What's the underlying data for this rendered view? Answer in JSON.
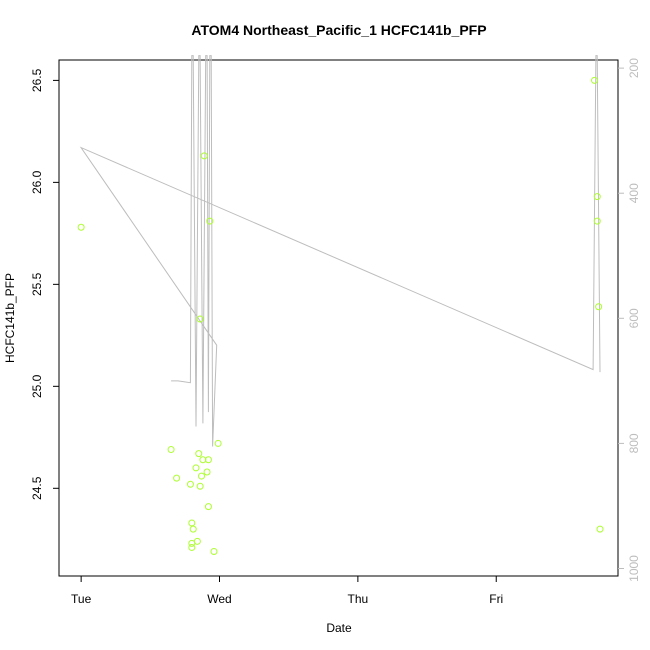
{
  "chart_data": {
    "type": "scatter",
    "title": "ATOM4 Northeast_Pacific_1 HCFC141b_PFP",
    "xlabel": "Date",
    "ylabel": "HCFC141b_PFP",
    "x_ticks": [
      {
        "day": 0,
        "label": "Tue"
      },
      {
        "day": 1,
        "label": "Wed"
      },
      {
        "day": 2,
        "label": "Thu"
      },
      {
        "day": 3,
        "label": "Fri"
      }
    ],
    "xlim": [
      -0.16,
      3.88
    ],
    "ylim": [
      24.07,
      26.6
    ],
    "y_ticks": [
      24.5,
      25.0,
      25.5,
      26.0,
      26.5
    ],
    "y_tick_labels": [
      "24.5",
      "25.0",
      "25.5",
      "26.0",
      "26.5"
    ],
    "y2_label_rotated": true,
    "y2lim": [
      1012,
      187
    ],
    "y2_ticks": [
      200,
      400,
      600,
      800,
      1000
    ],
    "y2_tick_labels": [
      "200",
      "400",
      "600",
      "800",
      "1000"
    ],
    "grid": false,
    "series": [
      {
        "kind": "points",
        "color": "#adff2f",
        "points": [
          {
            "x": 0.0,
            "y": 25.78
          },
          {
            "x": 0.65,
            "y": 24.69
          },
          {
            "x": 0.69,
            "y": 24.55
          },
          {
            "x": 0.79,
            "y": 24.52
          },
          {
            "x": 0.8,
            "y": 24.33
          },
          {
            "x": 0.81,
            "y": 24.3
          },
          {
            "x": 0.8,
            "y": 24.23
          },
          {
            "x": 0.8,
            "y": 24.21
          },
          {
            "x": 0.83,
            "y": 24.6
          },
          {
            "x": 0.84,
            "y": 24.24
          },
          {
            "x": 0.85,
            "y": 24.67
          },
          {
            "x": 0.86,
            "y": 24.51
          },
          {
            "x": 0.87,
            "y": 24.56
          },
          {
            "x": 0.88,
            "y": 24.64
          },
          {
            "x": 0.89,
            "y": 26.13
          },
          {
            "x": 0.91,
            "y": 24.58
          },
          {
            "x": 0.92,
            "y": 24.64
          },
          {
            "x": 0.92,
            "y": 24.41
          },
          {
            "x": 0.93,
            "y": 25.81
          },
          {
            "x": 0.86,
            "y": 25.33
          },
          {
            "x": 0.96,
            "y": 24.19
          },
          {
            "x": 0.99,
            "y": 24.72
          },
          {
            "x": 3.71,
            "y": 26.5
          },
          {
            "x": 3.73,
            "y": 25.93
          },
          {
            "x": 3.73,
            "y": 25.81
          },
          {
            "x": 3.74,
            "y": 25.39
          },
          {
            "x": 3.75,
            "y": 24.3
          }
        ]
      },
      {
        "kind": "line",
        "axis": "right",
        "color": "#bdbdbd",
        "points": [
          {
            "x": 0.65,
            "y": 700
          },
          {
            "x": 0.7,
            "y": 700
          },
          {
            "x": 0.79,
            "y": 703
          },
          {
            "x": 0.8,
            "y": 180
          },
          {
            "x": 0.81,
            "y": 180
          },
          {
            "x": 0.83,
            "y": 773
          },
          {
            "x": 0.85,
            "y": 180
          },
          {
            "x": 0.86,
            "y": 180
          },
          {
            "x": 0.88,
            "y": 768
          },
          {
            "x": 0.9,
            "y": 180
          },
          {
            "x": 0.91,
            "y": 180
          },
          {
            "x": 0.92,
            "y": 750
          },
          {
            "x": 0.93,
            "y": 180
          },
          {
            "x": 0.94,
            "y": 180
          },
          {
            "x": 0.95,
            "y": 805
          },
          {
            "x": 0.98,
            "y": 643
          },
          {
            "x": 0.0,
            "y": 327
          },
          {
            "x": 3.7,
            "y": 682
          },
          {
            "x": 3.72,
            "y": 180
          },
          {
            "x": 3.73,
            "y": 180
          },
          {
            "x": 3.75,
            "y": 686
          }
        ]
      }
    ]
  }
}
